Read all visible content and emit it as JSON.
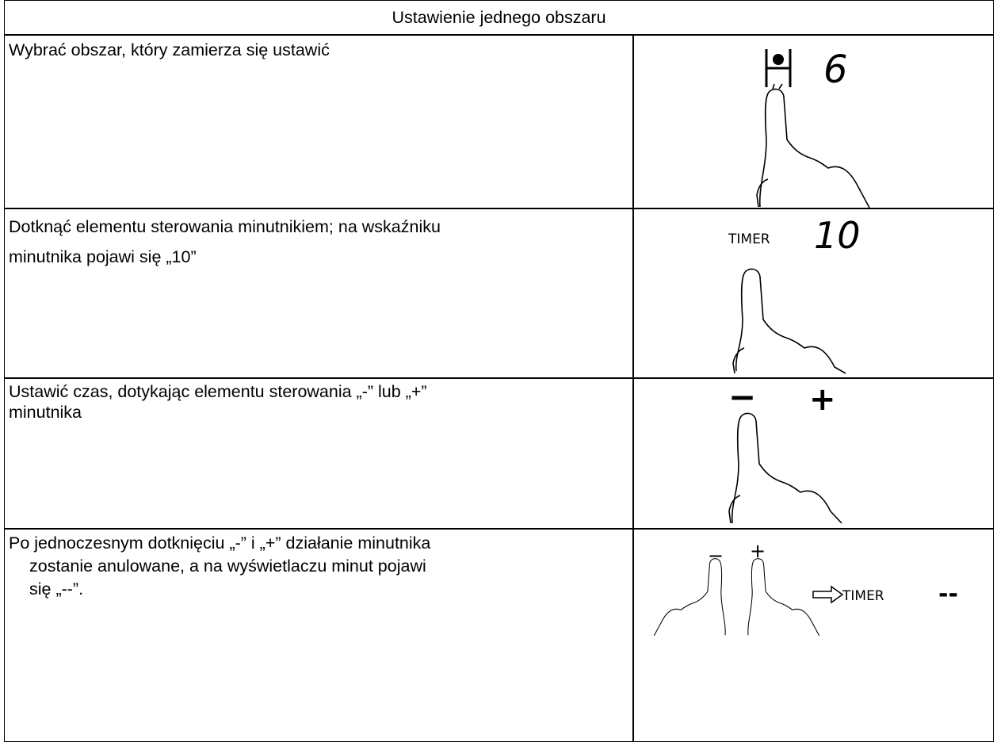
{
  "header": {
    "title": "Ustawienie jednego obszaru"
  },
  "table": {
    "rows": [
      {
        "lines": [
          "Wybrać obszar, który zamierza się ustawić"
        ],
        "display": {
          "digit": "6"
        }
      },
      {
        "lines": [
          "Dotknąć elementu sterowania minutnikiem; na wskaźniku",
          "minutnika pojawi się „10”"
        ],
        "display": {
          "label": "TIMER",
          "value": "10"
        }
      },
      {
        "lines": [
          "Ustawić czas, dotykając elementu sterowania „-” lub „+”",
          "minutnika"
        ],
        "display": {
          "minus": "−",
          "plus": "+"
        }
      },
      {
        "lines": [
          "Po jednoczesnym dotknięciu „-” i „+” działanie minutnika",
          "zostanie anulowane, a na wyświetlaczu minut pojawi",
          "się „--”."
        ],
        "display": {
          "minus": "−",
          "plus": "+",
          "label": "TIMER",
          "value": "--"
        }
      }
    ]
  }
}
